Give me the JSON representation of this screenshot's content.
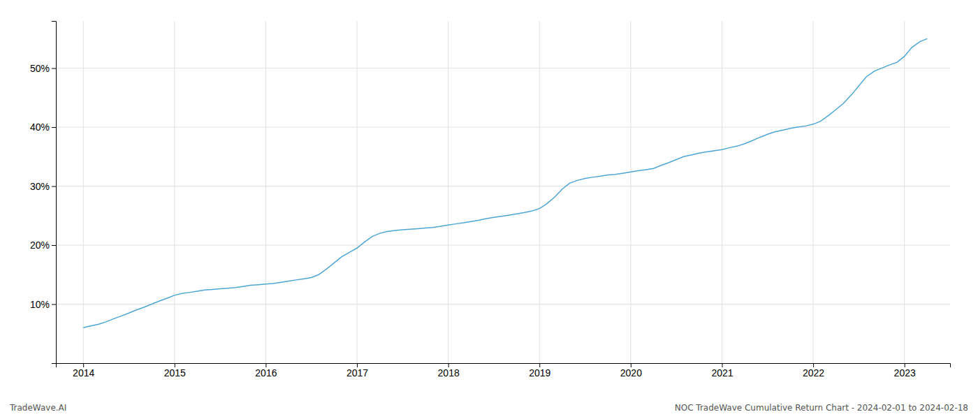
{
  "chart_data": {
    "type": "line",
    "x": [
      2014.0,
      2014.08,
      2014.17,
      2014.25,
      2014.33,
      2014.42,
      2014.5,
      2014.58,
      2014.67,
      2014.75,
      2014.83,
      2014.92,
      2015.0,
      2015.08,
      2015.17,
      2015.25,
      2015.33,
      2015.42,
      2015.5,
      2015.58,
      2015.67,
      2015.75,
      2015.83,
      2015.92,
      2016.0,
      2016.08,
      2016.17,
      2016.25,
      2016.33,
      2016.42,
      2016.5,
      2016.58,
      2016.67,
      2016.75,
      2016.83,
      2016.92,
      2017.0,
      2017.08,
      2017.17,
      2017.25,
      2017.33,
      2017.42,
      2017.5,
      2017.58,
      2017.67,
      2017.75,
      2017.83,
      2017.92,
      2018.0,
      2018.08,
      2018.17,
      2018.25,
      2018.33,
      2018.42,
      2018.5,
      2018.58,
      2018.67,
      2018.75,
      2018.83,
      2018.92,
      2019.0,
      2019.08,
      2019.17,
      2019.25,
      2019.33,
      2019.42,
      2019.5,
      2019.58,
      2019.67,
      2019.75,
      2019.83,
      2019.92,
      2020.0,
      2020.08,
      2020.17,
      2020.25,
      2020.33,
      2020.42,
      2020.5,
      2020.58,
      2020.67,
      2020.75,
      2020.83,
      2020.92,
      2021.0,
      2021.08,
      2021.17,
      2021.25,
      2021.33,
      2021.42,
      2021.5,
      2021.58,
      2021.67,
      2021.75,
      2021.83,
      2021.92,
      2022.0,
      2022.08,
      2022.17,
      2022.25,
      2022.33,
      2022.42,
      2022.5,
      2022.58,
      2022.67,
      2022.75,
      2022.83,
      2022.92,
      2023.0,
      2023.08,
      2023.17,
      2023.25
    ],
    "values": [
      6.0,
      6.3,
      6.6,
      7.0,
      7.5,
      8.0,
      8.5,
      9.0,
      9.5,
      10.0,
      10.5,
      11.0,
      11.5,
      11.8,
      12.0,
      12.2,
      12.4,
      12.5,
      12.6,
      12.7,
      12.8,
      13.0,
      13.2,
      13.3,
      13.4,
      13.5,
      13.7,
      13.9,
      14.1,
      14.3,
      14.5,
      15.0,
      16.0,
      17.0,
      18.0,
      18.8,
      19.5,
      20.5,
      21.5,
      22.0,
      22.3,
      22.5,
      22.6,
      22.7,
      22.8,
      22.9,
      23.0,
      23.2,
      23.4,
      23.6,
      23.8,
      24.0,
      24.2,
      24.5,
      24.7,
      24.9,
      25.1,
      25.3,
      25.5,
      25.8,
      26.2,
      27.0,
      28.2,
      29.5,
      30.5,
      31.0,
      31.3,
      31.5,
      31.7,
      31.9,
      32.0,
      32.2,
      32.4,
      32.6,
      32.8,
      33.0,
      33.5,
      34.0,
      34.5,
      35.0,
      35.3,
      35.6,
      35.8,
      36.0,
      36.2,
      36.5,
      36.8,
      37.2,
      37.7,
      38.3,
      38.8,
      39.2,
      39.5,
      39.8,
      40.0,
      40.2,
      40.5,
      41.0,
      42.0,
      43.0,
      44.0,
      45.5,
      47.0,
      48.5,
      49.5,
      50.0,
      50.5,
      51.0,
      52.0,
      53.5,
      54.5,
      55.0
    ],
    "color": "#4da6d4",
    "xlim": [
      2013.7,
      2023.5
    ],
    "ylim": [
      0,
      58
    ],
    "xticks": [
      2014,
      2015,
      2016,
      2017,
      2018,
      2019,
      2020,
      2021,
      2022,
      2023
    ],
    "yticks": [
      {
        "value": 10,
        "label": "10%"
      },
      {
        "value": 20,
        "label": "20%"
      },
      {
        "value": 30,
        "label": "30%"
      },
      {
        "value": 40,
        "label": "40%"
      },
      {
        "value": 50,
        "label": "50%"
      }
    ],
    "grid": true,
    "annotations": [
      "TradeWave.AI",
      "NOC TradeWave Cumulative Return Chart - 2024-02-01 to 2024-02-18"
    ]
  }
}
